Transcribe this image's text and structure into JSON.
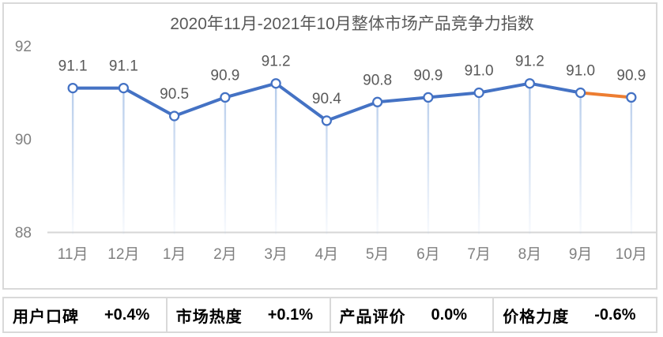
{
  "title": "2020年11月-2021年10月整体市场产品竞争力指数",
  "chart_data": {
    "type": "line",
    "title": "2020年11月-2021年10月整体市场产品竞争力指数",
    "categories": [
      "11月",
      "12月",
      "1月",
      "2月",
      "3月",
      "4月",
      "5月",
      "6月",
      "7月",
      "8月",
      "9月",
      "10月"
    ],
    "series": [
      {
        "name": "整体市场产品竞争力指数",
        "values": [
          91.1,
          91.1,
          90.5,
          90.9,
          91.2,
          90.4,
          90.8,
          90.9,
          91.0,
          91.2,
          91.0,
          90.9
        ]
      }
    ],
    "data_labels": [
      "91.1",
      "91.1",
      "90.5",
      "90.9",
      "91.2",
      "90.4",
      "90.8",
      "90.9",
      "91.0",
      "91.2",
      "91.0",
      "90.9"
    ],
    "ylim": [
      88,
      92
    ],
    "yticks": [
      88,
      90,
      92
    ],
    "grid": false,
    "legend_position": "none",
    "marker": "open-circle",
    "colors": {
      "line": "#4472C4",
      "last_segment": "#ED7D31",
      "marker_stroke": "#4472C4",
      "marker_fill": "#FFFFFF",
      "drop_line": "#AFC7E9",
      "axis_line": "#D6D6D6",
      "data_label_text": "#595959",
      "axis_text": "#808080",
      "title_text": "#595959"
    }
  },
  "stats": {
    "items": [
      {
        "label": "用户口碑",
        "value": "+0.4%"
      },
      {
        "label": "市场热度",
        "value": "+0.1%"
      },
      {
        "label": "产品评价",
        "value": "0.0%"
      },
      {
        "label": "价格力度",
        "value": "-0.6%"
      }
    ]
  }
}
